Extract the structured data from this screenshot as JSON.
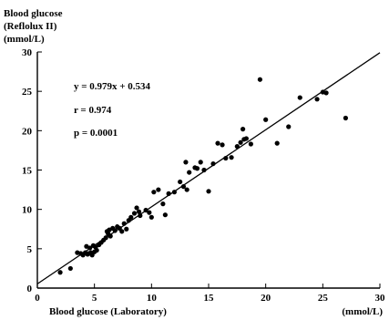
{
  "chart_data": {
    "type": "scatter",
    "ylabel_lines": [
      "Blood glucose",
      "(Reflolux II)",
      "(mmol/L)"
    ],
    "xlabel": "Blood glucose (Laboratory)",
    "xunit": "(mmol/L)",
    "xlim": [
      0,
      30
    ],
    "ylim": [
      0,
      30
    ],
    "xticks": [
      "0",
      "5",
      "10",
      "15",
      "20",
      "25",
      "30"
    ],
    "yticks": [
      "0",
      "5",
      "10",
      "15",
      "20",
      "25",
      "30"
    ],
    "annotations": [
      "y = 0.979x + 0.534",
      "r = 0.974",
      "p = 0.0001"
    ],
    "regression": {
      "slope": 0.979,
      "intercept": 0.534
    },
    "grid": false,
    "points": [
      [
        2.0,
        2.0
      ],
      [
        2.9,
        2.5
      ],
      [
        3.5,
        4.5
      ],
      [
        3.8,
        4.4
      ],
      [
        4.0,
        4.2
      ],
      [
        4.2,
        4.5
      ],
      [
        4.3,
        5.3
      ],
      [
        4.4,
        4.3
      ],
      [
        4.5,
        4.4
      ],
      [
        4.6,
        5.1
      ],
      [
        4.7,
        4.5
      ],
      [
        4.8,
        4.2
      ],
      [
        4.9,
        5.4
      ],
      [
        5.0,
        4.6
      ],
      [
        5.1,
        5.2
      ],
      [
        5.2,
        4.8
      ],
      [
        5.4,
        5.5
      ],
      [
        5.6,
        5.8
      ],
      [
        5.8,
        6.1
      ],
      [
        6.0,
        6.4
      ],
      [
        6.1,
        7.2
      ],
      [
        6.2,
        6.9
      ],
      [
        6.3,
        7.4
      ],
      [
        6.4,
        6.6
      ],
      [
        6.6,
        7.6
      ],
      [
        6.8,
        7.3
      ],
      [
        7.0,
        7.8
      ],
      [
        7.2,
        7.6
      ],
      [
        7.4,
        7.2
      ],
      [
        7.6,
        8.2
      ],
      [
        7.8,
        7.5
      ],
      [
        8.0,
        8.6
      ],
      [
        8.2,
        9.0
      ],
      [
        8.5,
        9.5
      ],
      [
        8.7,
        10.2
      ],
      [
        8.9,
        9.7
      ],
      [
        9.0,
        9.2
      ],
      [
        9.5,
        9.9
      ],
      [
        9.8,
        9.6
      ],
      [
        10.0,
        9.0
      ],
      [
        10.2,
        12.2
      ],
      [
        10.6,
        12.5
      ],
      [
        11.0,
        10.7
      ],
      [
        11.2,
        9.3
      ],
      [
        11.5,
        12.0
      ],
      [
        12.0,
        12.2
      ],
      [
        12.5,
        13.5
      ],
      [
        12.8,
        12.9
      ],
      [
        13.0,
        16.0
      ],
      [
        13.1,
        12.5
      ],
      [
        13.3,
        14.7
      ],
      [
        13.8,
        15.3
      ],
      [
        14.0,
        15.2
      ],
      [
        14.3,
        16.0
      ],
      [
        14.6,
        15.0
      ],
      [
        15.0,
        12.3
      ],
      [
        15.4,
        15.8
      ],
      [
        15.8,
        18.4
      ],
      [
        16.2,
        18.2
      ],
      [
        16.5,
        16.5
      ],
      [
        17.0,
        16.6
      ],
      [
        17.5,
        18.0
      ],
      [
        17.8,
        18.5
      ],
      [
        18.0,
        20.2
      ],
      [
        18.1,
        18.9
      ],
      [
        18.3,
        19.0
      ],
      [
        18.7,
        18.3
      ],
      [
        19.5,
        26.5
      ],
      [
        20.0,
        21.4
      ],
      [
        21.0,
        18.4
      ],
      [
        22.0,
        20.5
      ],
      [
        23.0,
        24.2
      ],
      [
        24.5,
        24.0
      ],
      [
        25.0,
        24.9
      ],
      [
        25.3,
        24.8
      ],
      [
        27.0,
        21.6
      ]
    ]
  }
}
